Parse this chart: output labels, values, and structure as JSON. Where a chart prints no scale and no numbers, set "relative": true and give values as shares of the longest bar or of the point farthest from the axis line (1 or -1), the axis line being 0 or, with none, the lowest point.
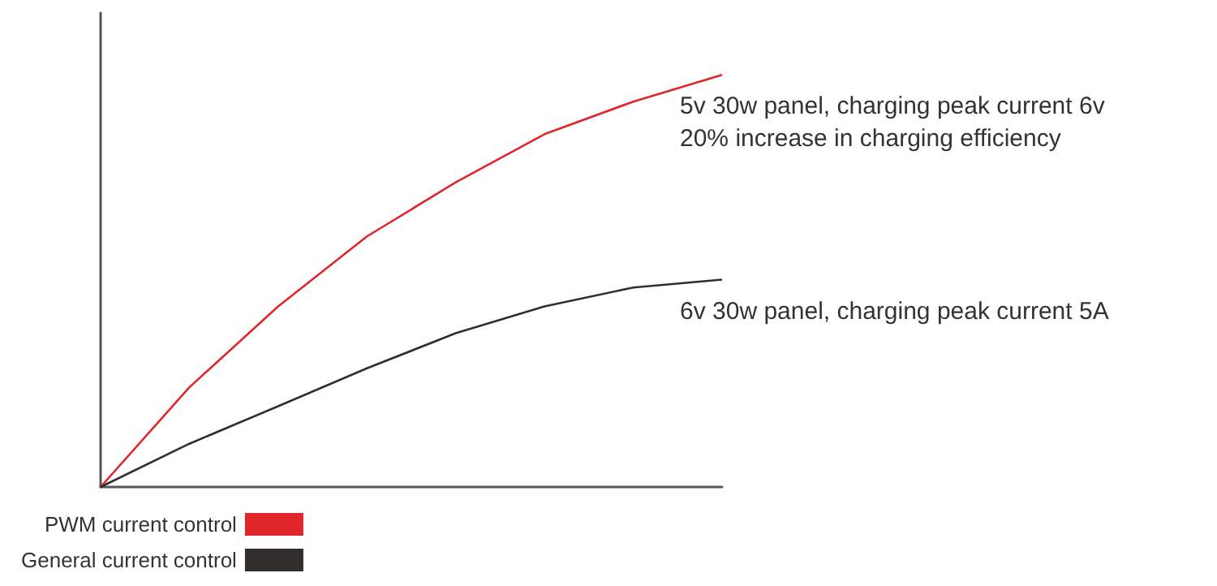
{
  "chart_data": {
    "type": "line",
    "relative": true,
    "categories": [
      null,
      null,
      null,
      null,
      null,
      null,
      null,
      null
    ],
    "series": [
      {
        "name": "PWM current control",
        "color": "#e0262b",
        "values": [
          0,
          0.242,
          0.438,
          0.608,
          0.739,
          0.856,
          0.935,
          1
        ]
      },
      {
        "name": "General current control",
        "color": "#332e2e",
        "values": [
          0,
          0.105,
          0.196,
          0.288,
          0.373,
          0.438,
          0.484,
          0.503
        ]
      }
    ],
    "annotations": [
      "5v 30w panel, charging peak current 6v",
      "20% increase in charging efficiency",
      "6v 30w panel, charging peak current 5A"
    ],
    "legend": "bottom left",
    "marker": "none",
    "line_style": "solid",
    "grid": false
  }
}
